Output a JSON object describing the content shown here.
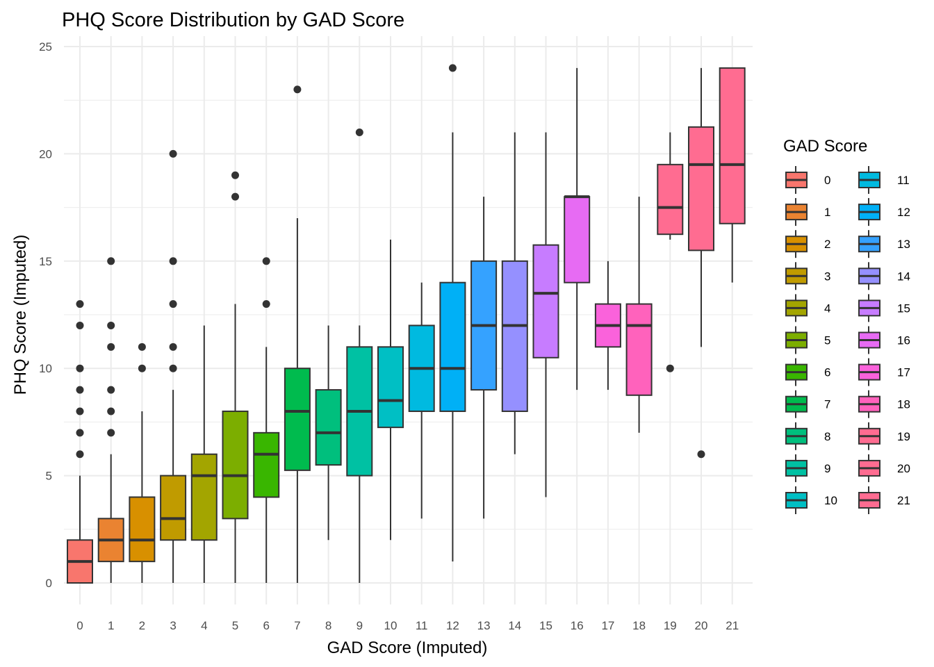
{
  "chart_data": {
    "type": "boxplot",
    "title": "PHQ Score Distribution by GAD Score",
    "xlabel": "GAD Score (Imputed)",
    "ylabel": "PHQ Score (Imputed)",
    "ylim": [
      -1,
      25
    ],
    "yticks": [
      0,
      5,
      10,
      15,
      20,
      25
    ],
    "grid": true,
    "legend": {
      "title": "GAD Score",
      "position": "right",
      "columns": 2
    },
    "categories": [
      "0",
      "1",
      "2",
      "3",
      "4",
      "5",
      "6",
      "7",
      "8",
      "9",
      "10",
      "11",
      "12",
      "13",
      "14",
      "15",
      "16",
      "17",
      "18",
      "19",
      "20",
      "21"
    ],
    "colors": [
      "#F8766D",
      "#EA8331",
      "#D89000",
      "#C09B00",
      "#A3A500",
      "#7CAE00",
      "#39B600",
      "#00BB4E",
      "#00BF7D",
      "#00C1A3",
      "#00BFC4",
      "#00BAE0",
      "#00B0F6",
      "#35A2FF",
      "#9590FF",
      "#C77CFF",
      "#E76BF3",
      "#FA62DB",
      "#FF62BC",
      "#FF6C91",
      "#FF6C91",
      "#FF6C91"
    ],
    "boxes": [
      {
        "label": "0",
        "min": 0,
        "q1": 0,
        "median": 1,
        "q3": 2,
        "max": 5,
        "outliers": [
          6,
          7,
          8,
          9,
          10,
          12,
          13
        ]
      },
      {
        "label": "1",
        "min": 0,
        "q1": 1,
        "median": 2,
        "q3": 3,
        "max": 6,
        "outliers": [
          7,
          8,
          9,
          11,
          12,
          15
        ]
      },
      {
        "label": "2",
        "min": 0,
        "q1": 1,
        "median": 2,
        "q3": 4,
        "max": 8,
        "outliers": [
          10,
          11
        ]
      },
      {
        "label": "3",
        "min": 0,
        "q1": 2,
        "median": 3,
        "q3": 5,
        "max": 9,
        "outliers": [
          10,
          11,
          13,
          15,
          20
        ]
      },
      {
        "label": "4",
        "min": 0,
        "q1": 2,
        "median": 5,
        "q3": 6,
        "max": 12,
        "outliers": []
      },
      {
        "label": "5",
        "min": 0,
        "q1": 3,
        "median": 5,
        "q3": 8,
        "max": 13,
        "outliers": [
          18,
          19
        ]
      },
      {
        "label": "6",
        "min": 0,
        "q1": 4,
        "median": 6,
        "q3": 7,
        "max": 11,
        "outliers": [
          13,
          15
        ]
      },
      {
        "label": "7",
        "min": 0,
        "q1": 5.25,
        "median": 8,
        "q3": 10,
        "max": 17,
        "outliers": [
          23
        ]
      },
      {
        "label": "8",
        "min": 2,
        "q1": 5.5,
        "median": 7,
        "q3": 9,
        "max": 12,
        "outliers": []
      },
      {
        "label": "9",
        "min": 0,
        "q1": 5,
        "median": 8,
        "q3": 11,
        "max": 12,
        "outliers": [
          21
        ]
      },
      {
        "label": "10",
        "min": 2,
        "q1": 7.25,
        "median": 8.5,
        "q3": 11,
        "max": 16,
        "outliers": []
      },
      {
        "label": "11",
        "min": 3,
        "q1": 8,
        "median": 10,
        "q3": 12,
        "max": 14,
        "outliers": []
      },
      {
        "label": "12",
        "min": 1,
        "q1": 8,
        "median": 10,
        "q3": 14,
        "max": 21,
        "outliers": [
          24
        ]
      },
      {
        "label": "13",
        "min": 3,
        "q1": 9,
        "median": 12,
        "q3": 15,
        "max": 18,
        "outliers": []
      },
      {
        "label": "14",
        "min": 6,
        "q1": 8,
        "median": 12,
        "q3": 15,
        "max": 21,
        "outliers": []
      },
      {
        "label": "15",
        "min": 4,
        "q1": 10.5,
        "median": 13.5,
        "q3": 15.75,
        "max": 21,
        "outliers": []
      },
      {
        "label": "16",
        "min": 9,
        "q1": 14,
        "median": 18,
        "q3": 18,
        "max": 24,
        "outliers": []
      },
      {
        "label": "17",
        "min": 9,
        "q1": 11,
        "median": 12,
        "q3": 13,
        "max": 15,
        "outliers": []
      },
      {
        "label": "18",
        "min": 7,
        "q1": 8.75,
        "median": 12,
        "q3": 13,
        "max": 18,
        "outliers": []
      },
      {
        "label": "19",
        "min": 16,
        "q1": 16.25,
        "median": 17.5,
        "q3": 19.5,
        "max": 21,
        "outliers": [
          10
        ]
      },
      {
        "label": "20",
        "min": 11,
        "q1": 15.5,
        "median": 19.5,
        "q3": 21.25,
        "max": 24,
        "outliers": [
          6
        ]
      },
      {
        "label": "21",
        "min": 14,
        "q1": 16.75,
        "median": 19.5,
        "q3": 24,
        "max": 24,
        "outliers": []
      }
    ]
  }
}
